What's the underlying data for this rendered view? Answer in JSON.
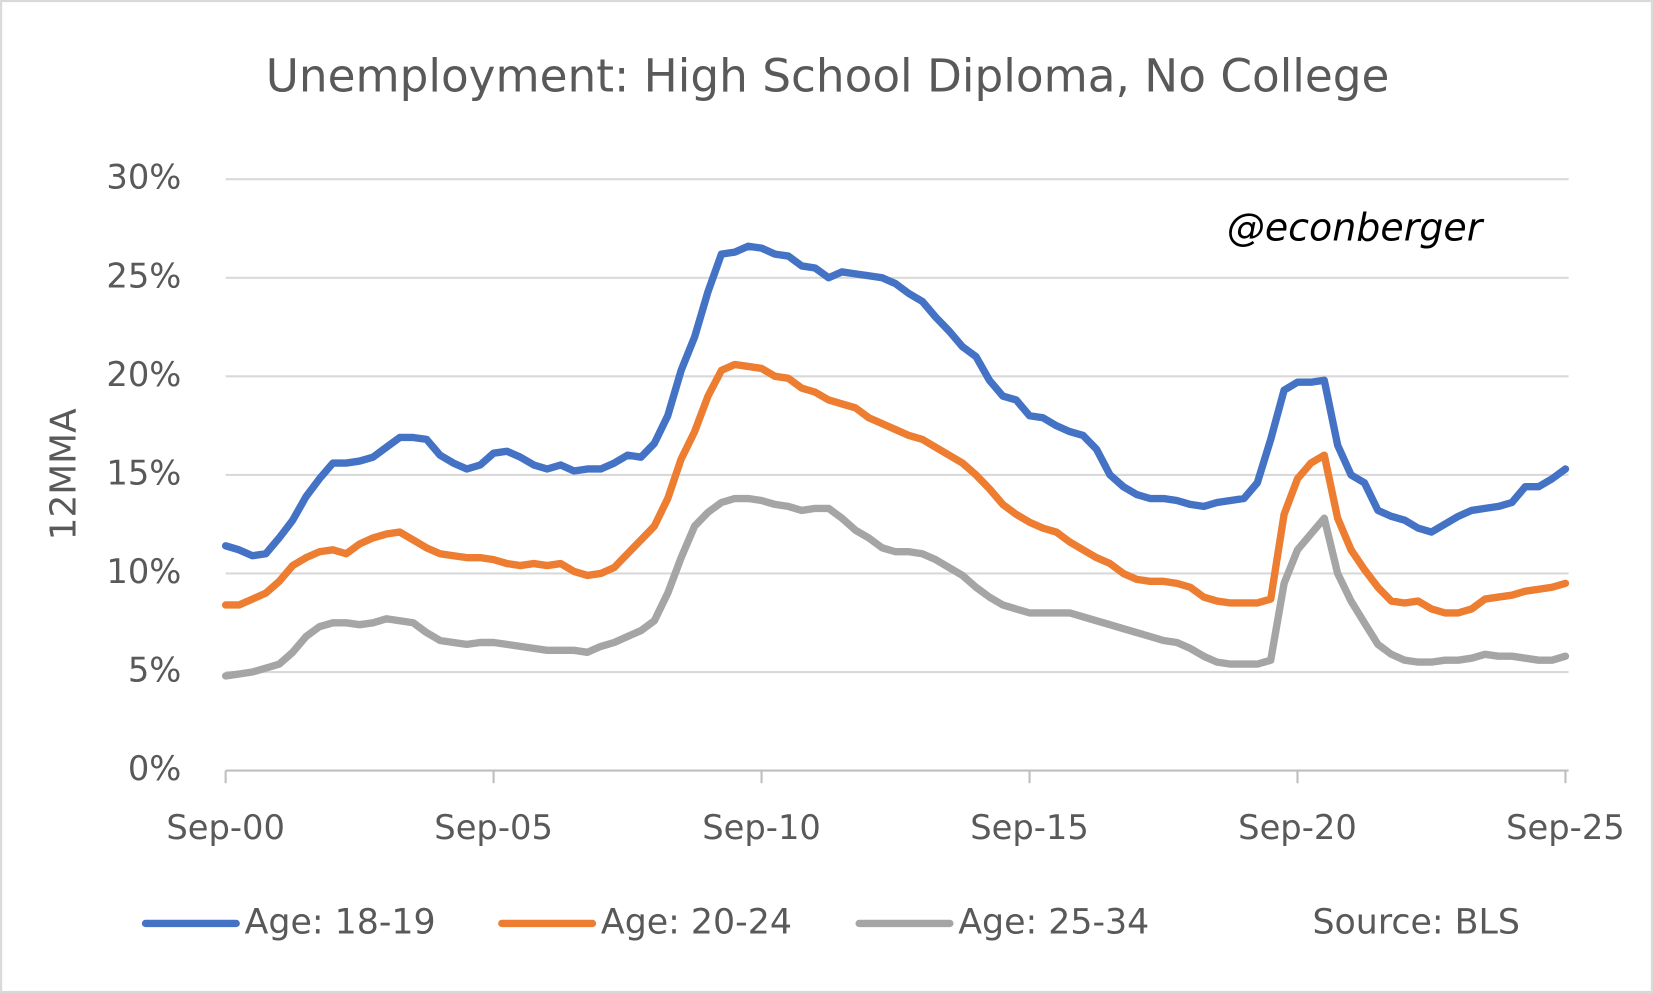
{
  "chart_data": {
    "type": "line",
    "title": "Unemployment: High School Diploma, No College",
    "y_label": "12MMA",
    "annotation": "@econberger",
    "source": "Source: BLS",
    "categories": [
      "Sep-00",
      null,
      null,
      null,
      null,
      null,
      null,
      null,
      null,
      null,
      null,
      null,
      null,
      null,
      null,
      null,
      null,
      null,
      null,
      null,
      "Sep-05",
      null,
      null,
      null,
      null,
      null,
      null,
      null,
      null,
      null,
      null,
      null,
      null,
      null,
      null,
      null,
      null,
      null,
      null,
      null,
      "Sep-10",
      null,
      null,
      null,
      null,
      null,
      null,
      null,
      null,
      null,
      null,
      null,
      null,
      null,
      null,
      null,
      null,
      null,
      null,
      null,
      "Sep-15",
      null,
      null,
      null,
      null,
      null,
      null,
      null,
      null,
      null,
      null,
      null,
      null,
      null,
      null,
      null,
      null,
      null,
      null,
      null,
      "Sep-20",
      null,
      null,
      null,
      null,
      null,
      null,
      null,
      null,
      null,
      null,
      null,
      null,
      null,
      null,
      null,
      null,
      null,
      null,
      null,
      "Sep-25"
    ],
    "series": [
      {
        "name": "Age: 18-19",
        "color": "#4472c4",
        "values": [
          11.4,
          11.2,
          10.9,
          11.0,
          11.8,
          12.7,
          13.9,
          14.8,
          15.6,
          15.6,
          15.7,
          15.9,
          16.4,
          16.9,
          16.9,
          16.8,
          16.0,
          15.6,
          15.3,
          15.5,
          16.1,
          16.2,
          15.9,
          15.5,
          15.3,
          15.5,
          15.2,
          15.3,
          15.3,
          15.6,
          16.0,
          15.9,
          16.6,
          18.0,
          20.3,
          22.0,
          24.3,
          26.2,
          26.3,
          26.6,
          26.5,
          26.2,
          26.1,
          25.6,
          25.5,
          25.0,
          25.3,
          25.2,
          25.1,
          25.0,
          24.7,
          24.2,
          23.8,
          23.0,
          22.3,
          21.5,
          21.0,
          19.8,
          19.0,
          18.8,
          18.0,
          17.9,
          17.5,
          17.2,
          17.0,
          16.3,
          15.0,
          14.4,
          14.0,
          13.8,
          13.8,
          13.7,
          13.5,
          13.4,
          13.6,
          13.7,
          13.8,
          14.6,
          16.8,
          19.3,
          19.7,
          19.7,
          19.8,
          16.5,
          15.0,
          14.6,
          13.2,
          12.9,
          12.7,
          12.3,
          12.1,
          12.5,
          12.9,
          13.2,
          13.3,
          13.4,
          13.6,
          14.4,
          14.4,
          14.8,
          15.3
        ]
      },
      {
        "name": "Age: 20-24",
        "color": "#ed7d31",
        "values": [
          8.4,
          8.4,
          8.7,
          9.0,
          9.6,
          10.4,
          10.8,
          11.1,
          11.2,
          11.0,
          11.5,
          11.8,
          12.0,
          12.1,
          11.7,
          11.3,
          11.0,
          10.9,
          10.8,
          10.8,
          10.7,
          10.5,
          10.4,
          10.5,
          10.4,
          10.5,
          10.1,
          9.9,
          10.0,
          10.3,
          11.0,
          11.7,
          12.4,
          13.8,
          15.8,
          17.2,
          19.0,
          20.3,
          20.6,
          20.5,
          20.4,
          20.0,
          19.9,
          19.4,
          19.2,
          18.8,
          18.6,
          18.4,
          17.9,
          17.6,
          17.3,
          17.0,
          16.8,
          16.4,
          16.0,
          15.6,
          15.0,
          14.3,
          13.5,
          13.0,
          12.6,
          12.3,
          12.1,
          11.6,
          11.2,
          10.8,
          10.5,
          10.0,
          9.7,
          9.6,
          9.6,
          9.5,
          9.3,
          8.8,
          8.6,
          8.5,
          8.5,
          8.5,
          8.7,
          13.0,
          14.8,
          15.6,
          16.0,
          12.8,
          11.2,
          10.2,
          9.3,
          8.6,
          8.5,
          8.6,
          8.2,
          8.0,
          8.0,
          8.2,
          8.7,
          8.8,
          8.9,
          9.1,
          9.2,
          9.3,
          9.5
        ]
      },
      {
        "name": "Age: 25-34",
        "color": "#a5a5a5",
        "values": [
          4.8,
          4.9,
          5.0,
          5.2,
          5.4,
          6.0,
          6.8,
          7.3,
          7.5,
          7.5,
          7.4,
          7.5,
          7.7,
          7.6,
          7.5,
          7.0,
          6.6,
          6.5,
          6.4,
          6.5,
          6.5,
          6.4,
          6.3,
          6.2,
          6.1,
          6.1,
          6.1,
          6.0,
          6.3,
          6.5,
          6.8,
          7.1,
          7.6,
          9.0,
          10.8,
          12.4,
          13.1,
          13.6,
          13.8,
          13.8,
          13.7,
          13.5,
          13.4,
          13.2,
          13.3,
          13.3,
          12.8,
          12.2,
          11.8,
          11.3,
          11.1,
          11.1,
          11.0,
          10.7,
          10.3,
          9.9,
          9.3,
          8.8,
          8.4,
          8.2,
          8.0,
          8.0,
          8.0,
          8.0,
          7.8,
          7.6,
          7.4,
          7.2,
          7.0,
          6.8,
          6.6,
          6.5,
          6.2,
          5.8,
          5.5,
          5.4,
          5.4,
          5.4,
          5.6,
          9.5,
          11.2,
          12.0,
          12.8,
          10.0,
          8.6,
          7.5,
          6.4,
          5.9,
          5.6,
          5.5,
          5.5,
          5.6,
          5.6,
          5.7,
          5.9,
          5.8,
          5.8,
          5.7,
          5.6,
          5.6,
          5.8
        ]
      }
    ],
    "ylim": [
      0,
      30
    ],
    "yticks": [
      {
        "value": 0,
        "label": "0%"
      },
      {
        "value": 5,
        "label": "5%"
      },
      {
        "value": 10,
        "label": "10%"
      },
      {
        "value": 15,
        "label": "15%"
      },
      {
        "value": 20,
        "label": "20%"
      },
      {
        "value": 25,
        "label": "25%"
      },
      {
        "value": 30,
        "label": "30%"
      }
    ],
    "grid": true,
    "legend": "bottom"
  }
}
